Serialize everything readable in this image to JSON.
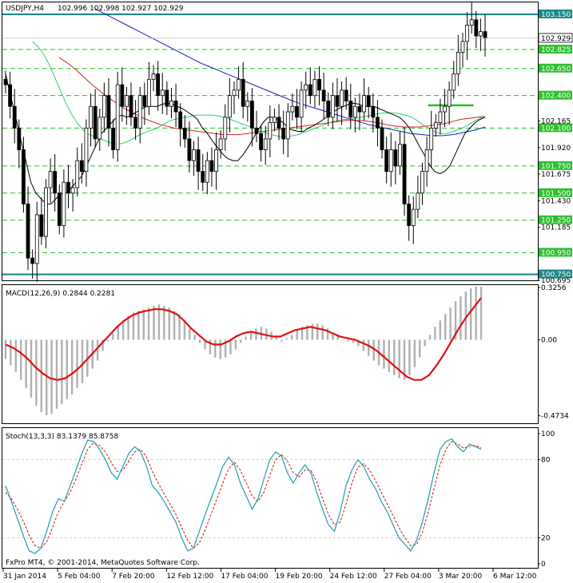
{
  "chart_data": {
    "type": "candlestick",
    "header": {
      "symbol_label": "USDJPY,H4",
      "ohlc_text": "102.996 102.998 102.927 102.929"
    },
    "price_panel": {
      "ylim": [
        100.695,
        103.26
      ],
      "tick_labels": [
        "102.165",
        "101.920",
        "101.675",
        "101.430",
        "101.185",
        "100.695"
      ],
      "tick_values": [
        102.165,
        101.92,
        101.675,
        101.43,
        101.185,
        100.695
      ],
      "levels": [
        {
          "value": 103.15,
          "label": "103.150",
          "style": "solid",
          "color": "#1a8a8a"
        },
        {
          "value": 102.825,
          "label": "102.825",
          "style": "dashed",
          "color": "#22c022"
        },
        {
          "value": 102.65,
          "label": "102.650",
          "style": "dashed",
          "color": "#22c022"
        },
        {
          "value": 102.4,
          "label": "102.400",
          "style": "dashed",
          "color": "#22c022"
        },
        {
          "value": 102.1,
          "label": "102.100",
          "style": "dashed",
          "color": "#22c022"
        },
        {
          "value": 101.75,
          "label": "101.750",
          "style": "dashed",
          "color": "#22c022"
        },
        {
          "value": 101.5,
          "label": "101.500",
          "style": "dashed",
          "color": "#22c022"
        },
        {
          "value": 101.25,
          "label": "101.250",
          "style": "dashed",
          "color": "#22c022"
        },
        {
          "value": 100.95,
          "label": "100.950",
          "style": "dashed",
          "color": "#22c022"
        },
        {
          "value": 100.75,
          "label": "100.750",
          "style": "solid",
          "color": "#1a8a8a"
        }
      ],
      "current_price": {
        "value": 102.929,
        "label": "102.929"
      },
      "segment": {
        "value": 102.31,
        "x_from": 0.795,
        "x_to": 0.88,
        "color": "#22c022"
      },
      "closes": [
        102.5,
        102.3,
        102.1,
        101.9,
        101.4,
        100.9,
        100.85,
        101.3,
        101.1,
        101.55,
        101.7,
        101.5,
        101.2,
        101.6,
        101.5,
        101.55,
        101.8,
        101.7,
        102.1,
        102.3,
        102.0,
        102.2,
        102.4,
        102.1,
        101.9,
        102.5,
        102.3,
        102.4,
        102.2,
        102.1,
        102.4,
        102.3,
        102.55,
        102.6,
        102.4,
        102.45,
        102.3,
        102.35,
        102.25,
        102.1,
        102.0,
        101.8,
        101.9,
        101.7,
        101.6,
        101.8,
        101.7,
        101.9,
        102.0,
        102.2,
        102.4,
        102.45,
        102.55,
        102.3,
        102.35,
        102.1,
        102.05,
        101.9,
        102.0,
        102.15,
        102.2,
        102.1,
        102.0,
        102.25,
        102.3,
        102.2,
        102.45,
        102.5,
        102.4,
        102.55,
        102.45,
        102.35,
        102.2,
        102.4,
        102.3,
        102.45,
        102.35,
        102.2,
        102.3,
        102.25,
        102.4,
        102.3,
        102.2,
        102.1,
        101.9,
        101.7,
        101.9,
        101.75,
        101.95,
        101.4,
        101.2,
        101.35,
        101.5,
        101.7,
        101.9,
        102.1,
        102.15,
        102.25,
        102.3,
        102.45,
        102.6,
        102.8,
        102.9,
        103.05,
        103.1,
        102.95,
        102.99,
        102.93
      ],
      "ma_fast": {
        "color": "#000000",
        "values": [
          102.6,
          102.4,
          102.2,
          102.0,
          101.8,
          101.6,
          101.5,
          101.45,
          101.4,
          101.4,
          101.45,
          101.5,
          101.5,
          101.55,
          101.6,
          101.65,
          101.75,
          101.85,
          101.95,
          102.05,
          102.1,
          102.15,
          102.2,
          102.22,
          102.2,
          102.22,
          102.25,
          102.28,
          102.3,
          102.3,
          102.3,
          102.32,
          102.33,
          102.32,
          102.3,
          102.28,
          102.25,
          102.22,
          102.18,
          102.1,
          102.05,
          101.98,
          101.92,
          101.86,
          101.82,
          101.8,
          101.8,
          101.85,
          101.92,
          102.0,
          102.08,
          102.15,
          102.2,
          102.2,
          102.18,
          102.15,
          102.1,
          102.08,
          102.07,
          102.07,
          102.1,
          102.12,
          102.15,
          102.18,
          102.22,
          102.25,
          102.28,
          102.3,
          102.32,
          102.33,
          102.32,
          102.3,
          102.3,
          102.3,
          102.28,
          102.26,
          102.24,
          102.22,
          102.2,
          102.16,
          102.1,
          102.02,
          101.93,
          101.85,
          101.76,
          101.7,
          101.68,
          101.7,
          101.75,
          101.85,
          101.95,
          102.05,
          102.1,
          102.15,
          102.18,
          102.2
        ]
      },
      "ma_mid": {
        "color": "#2bd06a",
        "values": [
          102.9,
          102.85,
          102.78,
          102.68,
          102.56,
          102.44,
          102.32,
          102.22,
          102.14,
          102.08,
          102.04,
          102.02,
          102.0,
          101.98,
          101.96,
          101.95,
          101.96,
          101.98,
          102.01,
          102.04,
          102.06,
          102.08,
          102.1,
          102.13,
          102.16,
          102.18,
          102.19,
          102.2,
          102.21,
          102.22,
          102.22,
          102.22,
          102.22,
          102.21,
          102.2,
          102.18,
          102.16,
          102.14,
          102.12,
          102.1,
          102.08,
          102.06,
          102.04,
          102.03,
          102.02,
          102.02,
          102.03,
          102.04,
          102.06,
          102.08,
          102.1,
          102.12,
          102.14,
          102.16,
          102.17,
          102.18,
          102.18,
          102.19,
          102.2,
          102.21,
          102.22,
          102.23,
          102.24,
          102.24,
          102.24,
          102.23,
          102.22,
          102.2,
          102.17,
          102.13,
          102.1,
          102.07,
          102.05,
          102.05,
          102.06,
          102.08,
          102.1,
          102.13,
          102.16,
          102.19,
          102.21
        ]
      },
      "ma_slow": {
        "color": "#dd2020",
        "values": [
          102.75,
          102.7,
          102.64,
          102.57,
          102.5,
          102.44,
          102.38,
          102.33,
          102.28,
          102.24,
          102.2,
          102.17,
          102.14,
          102.12,
          102.1,
          102.09,
          102.08,
          102.07,
          102.06,
          102.05,
          102.04,
          102.04,
          102.04,
          102.05,
          102.06,
          102.07,
          102.08,
          102.09,
          102.1,
          102.11,
          102.12,
          102.13,
          102.14,
          102.15,
          102.16,
          102.17,
          102.17,
          102.17,
          102.16,
          102.15,
          102.13,
          102.12,
          102.11,
          102.11,
          102.11,
          102.12,
          102.13,
          102.14,
          102.16,
          102.18,
          102.19,
          102.2,
          102.21
        ]
      },
      "ma_long": {
        "color": "#1c1cc0",
        "values": [
          103.2,
          103.15,
          103.1,
          103.05,
          103.0,
          102.95,
          102.9,
          102.85,
          102.8,
          102.75,
          102.7,
          102.66,
          102.62,
          102.58,
          102.54,
          102.5,
          102.46,
          102.42,
          102.38,
          102.34,
          102.31,
          102.28,
          102.25,
          102.22,
          102.19,
          102.16,
          102.13,
          102.11,
          102.09,
          102.07,
          102.05,
          102.04,
          102.03,
          102.03,
          102.04,
          102.06,
          102.08,
          102.11
        ]
      }
    },
    "macd_panel": {
      "title": "MACD(12,26,9) 0.2844 0.2281",
      "ylim": [
        -0.52,
        0.34
      ],
      "tick_labels": [
        "0.3256",
        "0.00",
        "-0.4734"
      ],
      "tick_values": [
        0.3256,
        0.0,
        -0.4734
      ],
      "histogram": [
        -0.12,
        -0.16,
        -0.2,
        -0.25,
        -0.3,
        -0.36,
        -0.41,
        -0.45,
        -0.47,
        -0.46,
        -0.43,
        -0.4,
        -0.37,
        -0.34,
        -0.3,
        -0.27,
        -0.23,
        -0.18,
        -0.13,
        -0.07,
        -0.01,
        0.04,
        0.08,
        0.12,
        0.15,
        0.17,
        0.18,
        0.19,
        0.2,
        0.21,
        0.22,
        0.21,
        0.2,
        0.18,
        0.16,
        0.12,
        0.07,
        0.03,
        -0.02,
        -0.06,
        -0.09,
        -0.11,
        -0.12,
        -0.11,
        -0.09,
        -0.06,
        -0.02,
        0.02,
        0.05,
        0.07,
        0.08,
        0.07,
        0.05,
        0.02,
        -0.01,
        0.01,
        0.03,
        0.06,
        0.08,
        0.09,
        0.1,
        0.1,
        0.09,
        0.07,
        0.04,
        0.02,
        0.0,
        -0.01,
        -0.02,
        -0.04,
        -0.07,
        -0.1,
        -0.13,
        -0.16,
        -0.18,
        -0.2,
        -0.22,
        -0.24,
        -0.25,
        -0.22,
        -0.17,
        -0.11,
        -0.04,
        0.03,
        0.08,
        0.12,
        0.16,
        0.2,
        0.24,
        0.27,
        0.3,
        0.32,
        0.33,
        0.33
      ],
      "signal": [
        -0.03,
        -0.05,
        -0.08,
        -0.12,
        -0.17,
        -0.21,
        -0.24,
        -0.25,
        -0.24,
        -0.21,
        -0.17,
        -0.12,
        -0.07,
        -0.02,
        0.03,
        0.08,
        0.12,
        0.15,
        0.17,
        0.18,
        0.19,
        0.19,
        0.18,
        0.16,
        0.12,
        0.07,
        0.03,
        -0.01,
        -0.03,
        -0.03,
        -0.01,
        0.02,
        0.04,
        0.05,
        0.04,
        0.03,
        0.02,
        0.02,
        0.04,
        0.06,
        0.07,
        0.08,
        0.07,
        0.06,
        0.04,
        0.02,
        0.01,
        0.0,
        -0.02,
        -0.04,
        -0.07,
        -0.11,
        -0.15,
        -0.19,
        -0.23,
        -0.25,
        -0.25,
        -0.22,
        -0.16,
        -0.09,
        -0.01,
        0.07,
        0.14,
        0.2,
        0.26
      ],
      "signal_color": "#e01010",
      "hist_color": "#b0b0b0"
    },
    "stoch_panel": {
      "title": "Stoch(13,3,3) 83.1379 85.8758",
      "ylim": [
        0,
        100
      ],
      "tick_labels": [
        "100",
        "80",
        "20",
        "0"
      ],
      "tick_values": [
        100,
        80,
        20,
        0
      ],
      "main": [
        60,
        48,
        35,
        22,
        10,
        8,
        12,
        25,
        40,
        50,
        48,
        60,
        72,
        85,
        95,
        94,
        88,
        80,
        70,
        65,
        75,
        85,
        90,
        86,
        75,
        60,
        55,
        48,
        40,
        32,
        20,
        10,
        12,
        25,
        38,
        50,
        62,
        75,
        82,
        76,
        62,
        52,
        42,
        50,
        65,
        80,
        86,
        83,
        70,
        62,
        70,
        76,
        70,
        55,
        42,
        30,
        25,
        40,
        60,
        72,
        80,
        75,
        65,
        58,
        48,
        40,
        30,
        20,
        15,
        10,
        18,
        32,
        50,
        70,
        88,
        94,
        96,
        90,
        86,
        92,
        90,
        88
      ],
      "signal": [
        55,
        50,
        42,
        33,
        22,
        14,
        12,
        17,
        28,
        40,
        48,
        55,
        65,
        77,
        88,
        93,
        91,
        86,
        78,
        71,
        72,
        79,
        86,
        88,
        82,
        71,
        62,
        54,
        46,
        38,
        28,
        18,
        12,
        16,
        26,
        38,
        50,
        62,
        73,
        78,
        72,
        62,
        52,
        48,
        55,
        68,
        80,
        84,
        79,
        70,
        67,
        72,
        72,
        63,
        50,
        38,
        30,
        32,
        46,
        62,
        74,
        77,
        72,
        64,
        55,
        46,
        37,
        28,
        20,
        14,
        15,
        24,
        40,
        58,
        76,
        88,
        94,
        92,
        89,
        90,
        91,
        89
      ],
      "main_color": "#1c9fb0",
      "signal_color": "#d01010"
    },
    "x_tick_labels": [
      "31 Jan 2014",
      "5 Feb 04:00",
      "7 Feb 20:00",
      "12 Feb 12:00",
      "17 Feb 04:00",
      "19 Feb 20:00",
      "24 Feb 12:00",
      "27 Feb 04:00",
      "3 Mar 20:00",
      "6 Mar 12:00"
    ],
    "copyright": "FxPro MT4, © 2001-2014, MetaQuotes Software Corp."
  }
}
